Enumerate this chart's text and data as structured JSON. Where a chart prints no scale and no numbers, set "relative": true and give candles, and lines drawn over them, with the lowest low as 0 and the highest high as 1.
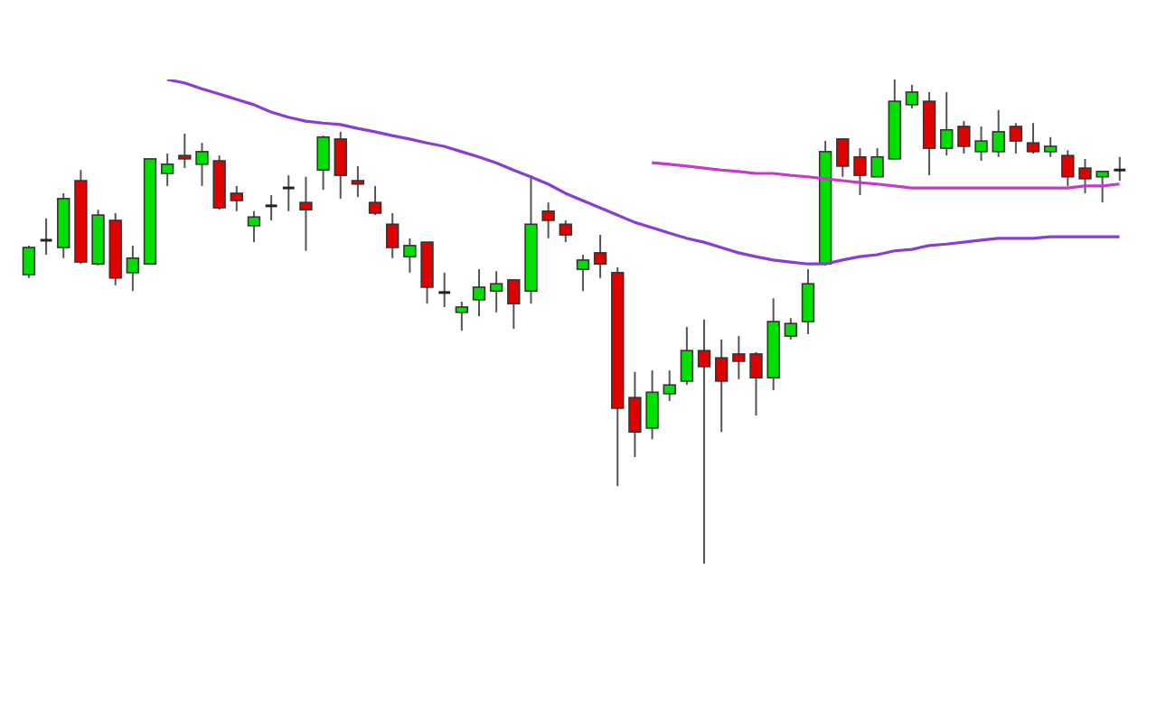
{
  "chart_data": {
    "type": "candlestick",
    "relative": true,
    "categories": [
      null,
      null,
      null,
      null,
      null,
      null,
      null,
      null,
      null,
      null,
      null,
      null,
      null,
      null,
      null,
      null,
      null,
      null,
      null,
      null,
      null,
      null,
      null,
      null,
      null,
      null,
      null,
      null,
      null,
      null,
      null,
      null,
      null,
      null,
      null,
      null,
      null,
      null,
      null,
      null,
      null,
      null,
      null,
      null,
      null,
      null,
      null,
      null,
      null,
      null,
      null,
      null,
      null,
      null,
      null,
      null,
      null,
      null,
      null,
      null,
      null,
      null,
      null,
      null
    ],
    "ohlc": [
      [
        0.597,
        0.657,
        0.59,
        0.653
      ],
      [
        0.668,
        0.713,
        0.638,
        0.668
      ],
      [
        0.653,
        0.765,
        0.631,
        0.754
      ],
      [
        0.791,
        0.813,
        0.619,
        0.623
      ],
      [
        0.619,
        0.731,
        0.616,
        0.72
      ],
      [
        0.709,
        0.724,
        0.575,
        0.59
      ],
      [
        0.601,
        0.657,
        0.563,
        0.631
      ],
      [
        0.619,
        0.836,
        0.619,
        0.836
      ],
      [
        0.806,
        0.847,
        0.78,
        0.825
      ],
      [
        0.843,
        0.888,
        0.817,
        0.836
      ],
      [
        0.825,
        0.869,
        0.78,
        0.851
      ],
      [
        0.832,
        0.843,
        0.731,
        0.735
      ],
      [
        0.765,
        0.78,
        0.728,
        0.75
      ],
      [
        0.698,
        0.728,
        0.664,
        0.716
      ],
      [
        0.739,
        0.761,
        0.709,
        0.739
      ],
      [
        0.776,
        0.802,
        0.728,
        0.776
      ],
      [
        0.746,
        0.799,
        0.646,
        0.731
      ],
      [
        0.813,
        0.884,
        0.772,
        0.881
      ],
      [
        0.877,
        0.892,
        0.754,
        0.802
      ],
      [
        0.791,
        0.821,
        0.757,
        0.784
      ],
      [
        0.746,
        0.78,
        0.72,
        0.724
      ],
      [
        0.701,
        0.724,
        0.631,
        0.653
      ],
      [
        0.634,
        0.672,
        0.601,
        0.657
      ],
      [
        0.664,
        0.664,
        0.537,
        0.571
      ],
      [
        0.56,
        0.601,
        0.53,
        0.56
      ],
      [
        0.519,
        0.541,
        0.481,
        0.53
      ],
      [
        0.545,
        0.608,
        0.511,
        0.571
      ],
      [
        0.563,
        0.604,
        0.519,
        0.578
      ],
      [
        0.586,
        0.586,
        0.485,
        0.537
      ],
      [
        0.563,
        0.802,
        0.537,
        0.701
      ],
      [
        0.728,
        0.746,
        0.672,
        0.709
      ],
      [
        0.701,
        0.709,
        0.664,
        0.679
      ],
      [
        0.608,
        0.638,
        0.563,
        0.627
      ],
      [
        0.642,
        0.679,
        0.59,
        0.619
      ],
      [
        0.601,
        0.612,
        0.16,
        0.321
      ],
      [
        0.343,
        0.396,
        0.22,
        0.272
      ],
      [
        0.28,
        0.399,
        0.257,
        0.354
      ],
      [
        0.351,
        0.399,
        0.336,
        0.369
      ],
      [
        0.377,
        0.489,
        0.369,
        0.44
      ],
      [
        0.44,
        0.504,
        0,
        0.407
      ],
      [
        0.425,
        0.463,
        0.272,
        0.377
      ],
      [
        0.433,
        0.47,
        0.381,
        0.418
      ],
      [
        0.433,
        0.437,
        0.306,
        0.384
      ],
      [
        0.384,
        0.548,
        0.358,
        0.5
      ],
      [
        0.47,
        0.507,
        0.463,
        0.496
      ],
      [
        0.5,
        0.608,
        0.474,
        0.578
      ],
      [
        0.619,
        0.873,
        0.616,
        0.851
      ],
      [
        0.877,
        0.877,
        0.799,
        0.821
      ],
      [
        0.84,
        0.858,
        0.761,
        0.802
      ],
      [
        0.799,
        0.858,
        0.799,
        0.84
      ],
      [
        0.836,
        1,
        0.836,
        0.955
      ],
      [
        0.948,
        0.989,
        0.94,
        0.974
      ],
      [
        0.955,
        0.974,
        0.802,
        0.858
      ],
      [
        0.858,
        0.974,
        0.843,
        0.896
      ],
      [
        0.903,
        0.914,
        0.847,
        0.862
      ],
      [
        0.851,
        0.903,
        0.832,
        0.873
      ],
      [
        0.851,
        0.937,
        0.84,
        0.892
      ],
      [
        0.903,
        0.91,
        0.847,
        0.873
      ],
      [
        0.869,
        0.91,
        0.847,
        0.851
      ],
      [
        0.851,
        0.881,
        0.84,
        0.862
      ],
      [
        0.843,
        0.854,
        0.78,
        0.799
      ],
      [
        0.817,
        0.836,
        0.765,
        0.795
      ],
      [
        0.799,
        0.81,
        0.746,
        0.81
      ],
      [
        0.813,
        0.84,
        0.791,
        0.813
      ]
    ],
    "colors": [
      "#00e000",
      "#222222",
      "#00e000",
      "#e00000",
      "#00e000",
      "#e00000",
      "#00e000",
      "#00e000",
      "#00e000",
      "#e00000",
      "#00e000",
      "#e00000",
      "#e00000",
      "#00e000",
      "#222222",
      "#222222",
      "#e00000",
      "#00e000",
      "#e00000",
      "#e00000",
      "#e00000",
      "#e00000",
      "#00e000",
      "#e00000",
      "#222222",
      "#00e000",
      "#00e000",
      "#00e000",
      "#e00000",
      "#00e000",
      "#e00000",
      "#e00000",
      "#00e000",
      "#e00000",
      "#e00000",
      "#e00000",
      "#00e000",
      "#00e000",
      "#00e000",
      "#e00000",
      "#e00000",
      "#e00000",
      "#e00000",
      "#00e000",
      "#00e000",
      "#00e000",
      "#00e000",
      "#e00000",
      "#e00000",
      "#00e000",
      "#00e000",
      "#00e000",
      "#e00000",
      "#00e000",
      "#e00000",
      "#00e000",
      "#00e000",
      "#e00000",
      "#e00000",
      "#00e000",
      "#e00000",
      "#e00000",
      "#00e000",
      "#222222"
    ],
    "series": [
      {
        "type": "line",
        "color": "#8a3cd6",
        "values": [
          null,
          null,
          null,
          null,
          null,
          null,
          null,
          null,
          1,
          0.993,
          0.981,
          0.97,
          0.959,
          0.948,
          0.933,
          0.922,
          0.914,
          0.91,
          0.907,
          0.899,
          0.892,
          0.884,
          0.877,
          0.869,
          0.862,
          0.851,
          0.84,
          0.828,
          0.813,
          0.799,
          0.784,
          0.765,
          0.75,
          0.735,
          0.72,
          0.705,
          0.694,
          0.683,
          0.672,
          0.664,
          0.653,
          0.642,
          0.634,
          0.627,
          0.623,
          0.619,
          0.619,
          0.627,
          0.634,
          0.638,
          0.646,
          0.649,
          0.657,
          0.66,
          0.664,
          0.668,
          0.672,
          0.672,
          0.672,
          0.675,
          0.675,
          0.675,
          0.675,
          0.675
        ]
      },
      {
        "type": "line",
        "color": "#c837d0",
        "values": [
          null,
          null,
          null,
          null,
          null,
          null,
          null,
          null,
          null,
          null,
          null,
          null,
          null,
          null,
          null,
          null,
          null,
          null,
          null,
          null,
          null,
          null,
          null,
          null,
          null,
          null,
          null,
          null,
          null,
          null,
          null,
          null,
          null,
          null,
          null,
          null,
          0.828,
          0.825,
          0.821,
          0.817,
          0.813,
          0.81,
          0.806,
          0.806,
          0.802,
          0.799,
          0.795,
          0.791,
          0.787,
          0.784,
          0.78,
          0.776,
          0.776,
          0.776,
          0.776,
          0.776,
          0.776,
          0.776,
          0.776,
          0.776,
          0.776,
          0.78,
          0.78,
          0.784
        ]
      }
    ]
  }
}
